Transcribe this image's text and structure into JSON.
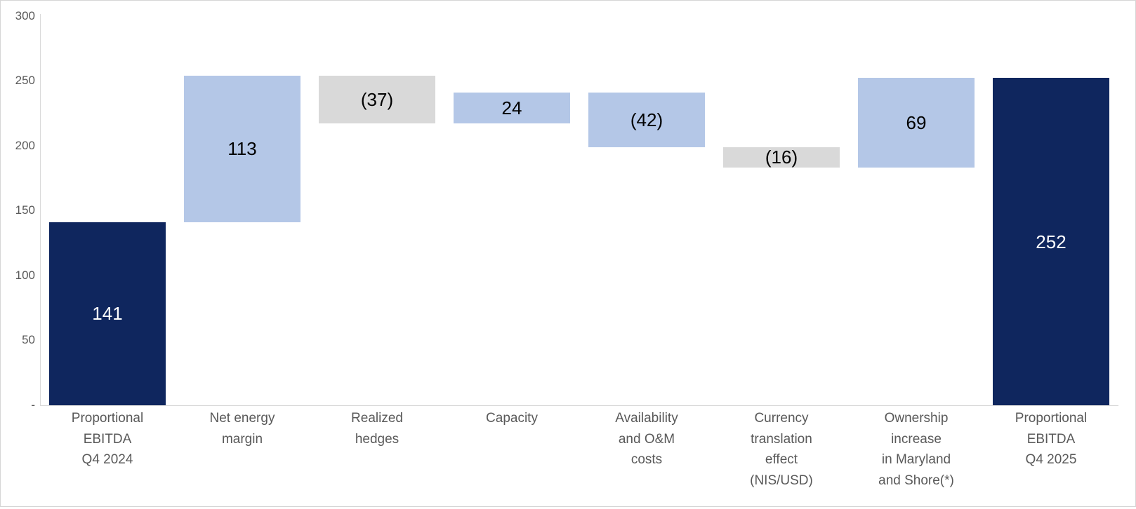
{
  "chart_data": {
    "type": "bar",
    "subtype": "waterfall",
    "title": "",
    "xlabel": "",
    "ylabel": "",
    "ylim": [
      0,
      300
    ],
    "grid": false,
    "legend": false,
    "y_axis_ticks": [
      {
        "label": "300",
        "value": 300
      },
      {
        "label": "250",
        "value": 250
      },
      {
        "label": "200",
        "value": 200
      },
      {
        "label": "150",
        "value": 150
      },
      {
        "label": "100",
        "value": 100
      },
      {
        "label": "50",
        "value": 50
      },
      {
        "label": "-",
        "value": 0
      }
    ],
    "categories": [
      "Proportional EBITDA Q4 2024",
      "Net energy margin",
      "Realized hedges",
      "Capacity",
      "Availability and O&M costs",
      "Currency translation effect (NIS/USD)",
      "Ownership increase in Maryland and Shore(*)",
      "Proportional EBITDA Q4 2025"
    ],
    "bars": [
      {
        "name": "proportional-ebitda-q4-2024",
        "category_lines": [
          "Proportional",
          "EBITDA",
          "Q4 2024"
        ],
        "value": 141,
        "value_label": "141",
        "cumulative_start": 0,
        "cumulative_end": 141,
        "role": "total",
        "color_key": "navy"
      },
      {
        "name": "net-energy-margin",
        "category_lines": [
          "Net energy",
          "margin"
        ],
        "value": 113,
        "value_label": "113",
        "cumulative_start": 141,
        "cumulative_end": 254,
        "role": "increase",
        "color_key": "light_blue"
      },
      {
        "name": "realized-hedges",
        "category_lines": [
          "Realized",
          "hedges"
        ],
        "value": -37,
        "value_label": "(37)",
        "cumulative_start": 254,
        "cumulative_end": 217,
        "role": "decrease",
        "color_key": "gray"
      },
      {
        "name": "capacity",
        "category_lines": [
          "Capacity"
        ],
        "value": 24,
        "value_label": "24",
        "cumulative_start": 217,
        "cumulative_end": 241,
        "role": "increase",
        "color_key": "light_blue"
      },
      {
        "name": "availability-and-om-costs",
        "category_lines": [
          "Availability",
          "and O&M",
          "costs"
        ],
        "value": -42,
        "value_label": "(42)",
        "cumulative_start": 241,
        "cumulative_end": 199,
        "role": "decrease",
        "color_key": "light_blue"
      },
      {
        "name": "currency-translation-effect",
        "category_lines": [
          "Currency",
          "translation",
          "effect",
          "(NIS/USD)"
        ],
        "value": -16,
        "value_label": "(16)",
        "cumulative_start": 199,
        "cumulative_end": 183,
        "role": "decrease",
        "color_key": "gray"
      },
      {
        "name": "ownership-increase-maryland-shore",
        "category_lines": [
          "Ownership",
          "increase",
          "in Maryland",
          "and Shore(*)"
        ],
        "value": 69,
        "value_label": "69",
        "cumulative_start": 183,
        "cumulative_end": 252,
        "role": "increase",
        "color_key": "light_blue"
      },
      {
        "name": "proportional-ebitda-q4-2025",
        "category_lines": [
          "Proportional",
          "EBITDA",
          "Q4 2025"
        ],
        "value": 252,
        "value_label": "252",
        "cumulative_start": 0,
        "cumulative_end": 252,
        "role": "total",
        "color_key": "navy"
      }
    ],
    "colors": {
      "navy": "#0f265e",
      "light_blue": "#b4c7e7",
      "gray": "#d9d9d9",
      "value_text_on_dark": "#ffffff",
      "value_text_on_light": "#000000",
      "tick_text": "#595959",
      "category_text": "#595959",
      "axis_line": "#d9d9d9"
    }
  }
}
